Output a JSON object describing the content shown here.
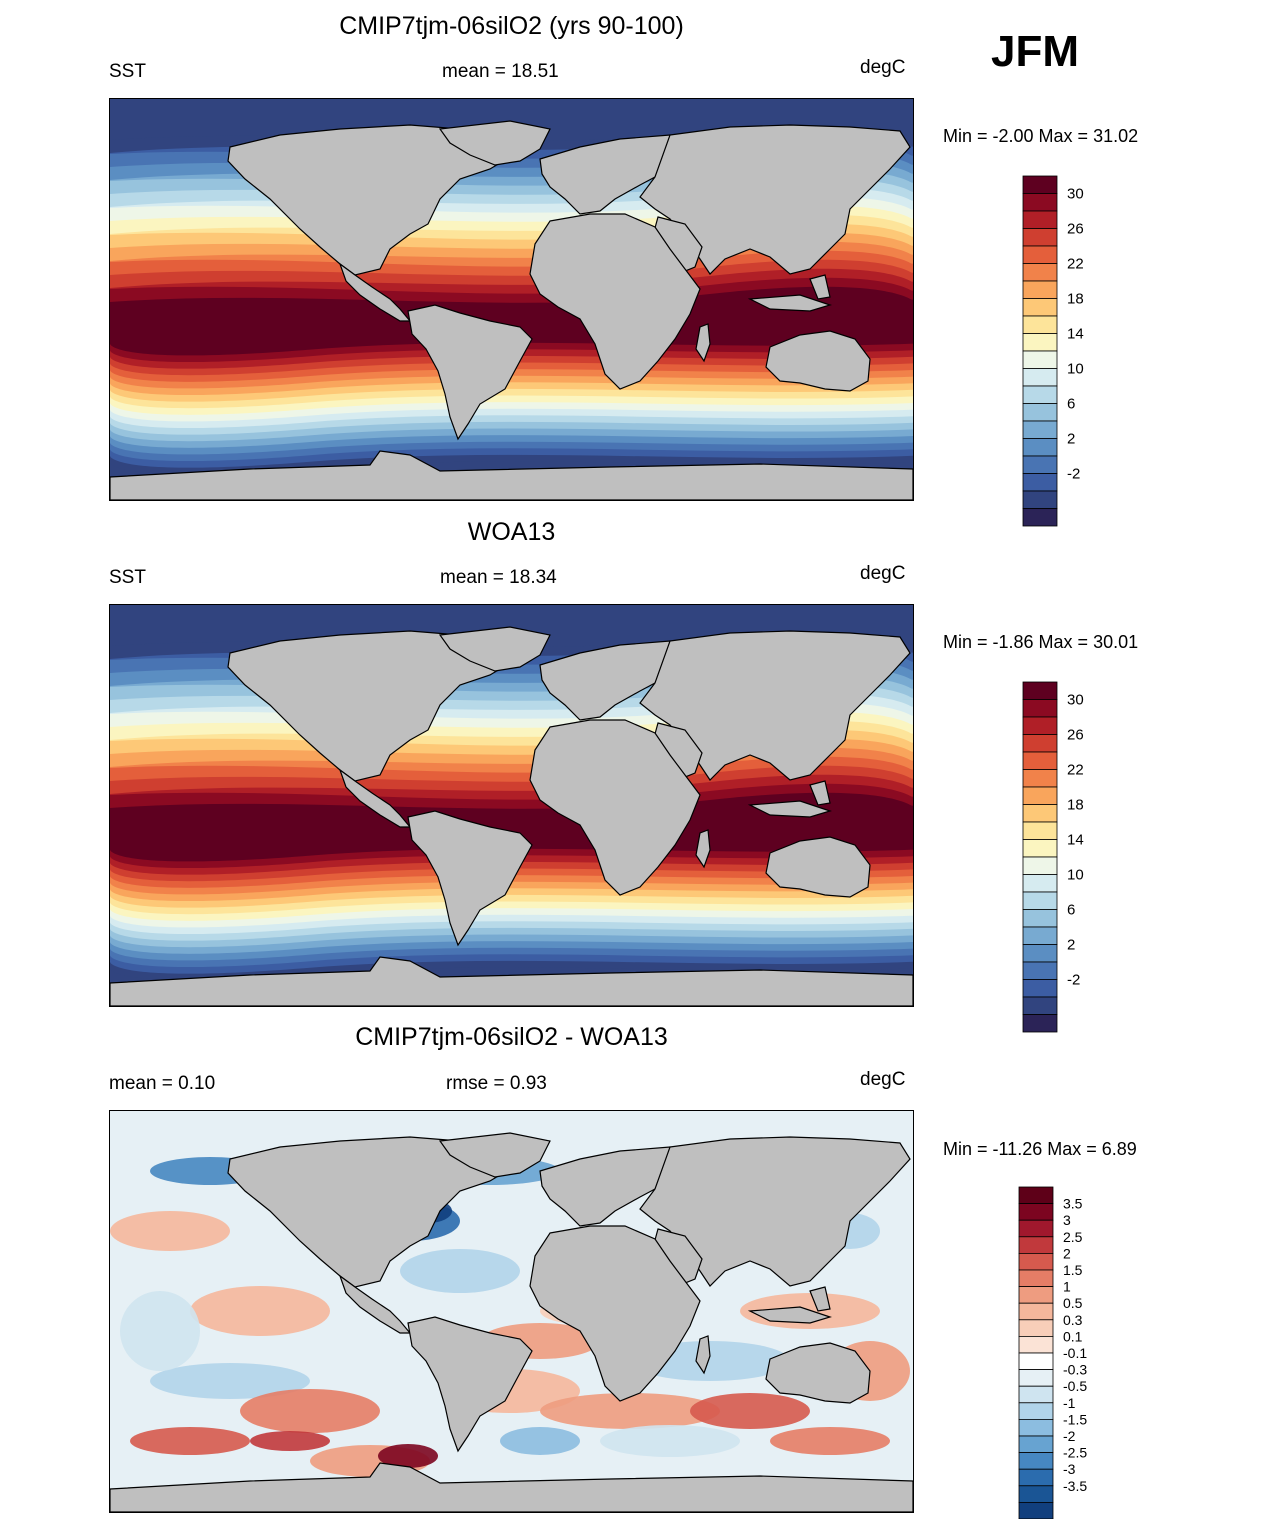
{
  "season": "JFM",
  "colors": {
    "land": "#bfbfbf",
    "sst_ramp": [
      "#2b2357",
      "#31447f",
      "#3c5da3",
      "#4974b3",
      "#5b8ec2",
      "#78aad1",
      "#97c3dd",
      "#b7d9e8",
      "#d6ebf0",
      "#eef6e8",
      "#fbf5c0",
      "#fde49a",
      "#fdc877",
      "#f9a55c",
      "#f1824a",
      "#e45f3b",
      "#cf3f30",
      "#b01f27",
      "#8b0a22",
      "#5e0020"
    ],
    "diff_ramp": [
      "#0a2f5e",
      "#113f7e",
      "#1a5595",
      "#2b6cae",
      "#4687c1",
      "#67a3d1",
      "#8cbde0",
      "#b1d4ea",
      "#cfe4f0",
      "#e6f0f5",
      "#ffffff",
      "#fbe3d6",
      "#f8ceb9",
      "#f5b79c",
      "#ee9c80",
      "#e57d66",
      "#d65a4e",
      "#c1393c",
      "#a0182d",
      "#7c0520",
      "#5e0018"
    ]
  },
  "panels": [
    {
      "title": "CMIP7tjm-06silO2 (yrs 90-100)",
      "left_label": "SST",
      "center_label": "mean =  18.51",
      "units": "degC",
      "minmax": "Min =  -2.00 Max =  31.02",
      "colorbar_labels": [
        "30",
        "26",
        "22",
        "18",
        "14",
        "10",
        "6",
        "2",
        "-2"
      ]
    },
    {
      "title": "WOA13",
      "left_label": "SST",
      "center_label": "mean =  18.34",
      "units": "degC",
      "minmax": "Min =  -1.86 Max =  30.01",
      "colorbar_labels": [
        "30",
        "26",
        "22",
        "18",
        "14",
        "10",
        "6",
        "2",
        "-2"
      ]
    },
    {
      "title": "CMIP7tjm-06silO2 - WOA13",
      "left_label": "mean =   0.10",
      "center_label": "rmse =   0.93",
      "units": "degC",
      "minmax": "Min = -11.26 Max =   6.89",
      "colorbar_labels": [
        "3.5",
        "3",
        "2.5",
        "2",
        "1.5",
        "1",
        "0.5",
        "0.3",
        "0.1",
        "-0.1",
        "-0.3",
        "-0.5",
        "-1",
        "-1.5",
        "-2",
        "-2.5",
        "-3",
        "-3.5"
      ]
    }
  ]
}
